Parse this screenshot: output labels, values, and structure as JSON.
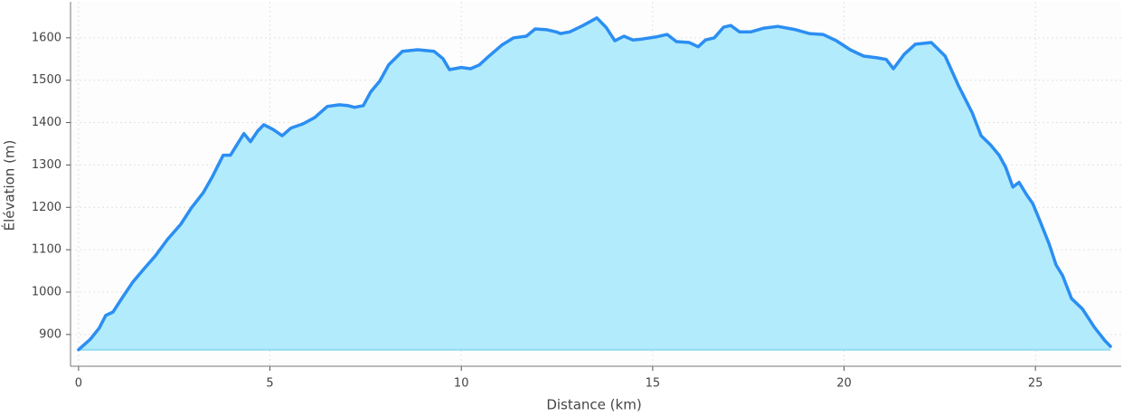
{
  "chart_data": {
    "type": "area",
    "xlabel": "Distance (km)",
    "ylabel": "Élévation (m)",
    "x": [
      0,
      0.31,
      0.54,
      0.71,
      0.9,
      1.13,
      1.42,
      1.72,
      2.01,
      2.32,
      2.67,
      2.95,
      3.26,
      3.5,
      3.78,
      3.97,
      4.14,
      4.32,
      4.49,
      4.68,
      4.84,
      5.08,
      5.32,
      5.55,
      5.86,
      6.17,
      6.5,
      6.81,
      7.04,
      7.21,
      7.44,
      7.63,
      7.87,
      8.1,
      8.46,
      8.86,
      9.29,
      9.52,
      9.69,
      10.0,
      10.24,
      10.47,
      10.7,
      11.06,
      11.37,
      11.7,
      11.93,
      12.24,
      12.48,
      12.59,
      12.83,
      13.18,
      13.54,
      13.78,
      14.01,
      14.25,
      14.48,
      14.72,
      15.08,
      15.38,
      15.62,
      15.95,
      16.19,
      16.38,
      16.61,
      16.85,
      17.04,
      17.27,
      17.56,
      17.91,
      18.27,
      18.74,
      19.09,
      19.45,
      19.8,
      20.16,
      20.51,
      20.86,
      21.1,
      21.29,
      21.57,
      21.86,
      22.28,
      22.64,
      22.99,
      23.35,
      23.58,
      23.82,
      24.05,
      24.22,
      24.41,
      24.57,
      24.76,
      24.93,
      25.12,
      25.36,
      25.54,
      25.71,
      25.94,
      26.23,
      26.54,
      26.82,
      26.96
    ],
    "y": [
      864,
      889,
      915,
      945,
      953,
      985,
      1024,
      1056,
      1086,
      1124,
      1160,
      1199,
      1235,
      1273,
      1323,
      1323,
      1348,
      1374,
      1355,
      1380,
      1395,
      1384,
      1369,
      1387,
      1397,
      1412,
      1438,
      1442,
      1440,
      1436,
      1440,
      1472,
      1498,
      1536,
      1568,
      1572,
      1568,
      1551,
      1525,
      1530,
      1527,
      1536,
      1555,
      1583,
      1600,
      1604,
      1621,
      1619,
      1614,
      1610,
      1614,
      1629,
      1647,
      1625,
      1593,
      1604,
      1595,
      1597,
      1602,
      1608,
      1591,
      1589,
      1579,
      1595,
      1600,
      1625,
      1629,
      1614,
      1614,
      1623,
      1627,
      1619,
      1610,
      1608,
      1593,
      1572,
      1557,
      1553,
      1549,
      1527,
      1561,
      1585,
      1589,
      1557,
      1487,
      1423,
      1369,
      1348,
      1323,
      1295,
      1248,
      1259,
      1231,
      1209,
      1167,
      1113,
      1064,
      1039,
      985,
      960,
      917,
      885,
      872
    ],
    "line_color": "#2b8ef2",
    "fill_color": "#b2ebfb",
    "xlim": [
      -0.21,
      27.24
    ],
    "ylim": [
      825,
      1685
    ],
    "xticks": [
      0,
      5,
      10,
      15,
      20,
      25
    ],
    "yticks": [
      900,
      1000,
      1100,
      1200,
      1300,
      1400,
      1500,
      1600
    ],
    "grid": true
  }
}
